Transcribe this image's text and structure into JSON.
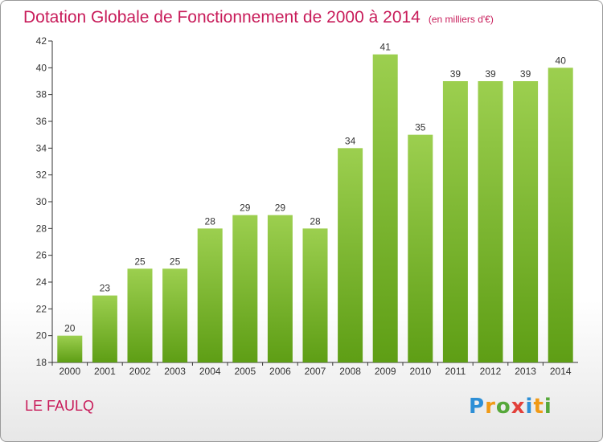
{
  "chart_data": {
    "type": "bar",
    "title": "Dotation Globale de Fonctionnement de 2000 à 2014",
    "subtitle": "(en milliers d'€)",
    "categories": [
      "2000",
      "2001",
      "2002",
      "2003",
      "2004",
      "2005",
      "2006",
      "2007",
      "2008",
      "2009",
      "2010",
      "2011",
      "2012",
      "2013",
      "2014"
    ],
    "values": [
      20,
      23,
      25,
      25,
      28,
      29,
      29,
      28,
      34,
      41,
      35,
      39,
      39,
      39,
      40
    ],
    "ylim": [
      18,
      42
    ],
    "yticks": [
      18,
      20,
      22,
      24,
      26,
      28,
      30,
      32,
      34,
      36,
      38,
      40,
      42
    ],
    "grid": false,
    "bar_color_top": "#9ccf4f",
    "bar_color_bottom": "#5e9e15"
  },
  "footer": {
    "commune": "LE FAULQ",
    "logo_letters": [
      {
        "char": "P",
        "color": "#2d8fd6"
      },
      {
        "char": "r",
        "color": "#f09a16"
      },
      {
        "char": "o",
        "color": "#56a83a"
      },
      {
        "char": "x",
        "color": "#e2403a"
      },
      {
        "char": "i",
        "color": "#2d8fd6"
      },
      {
        "char": "t",
        "color": "#f09a16"
      },
      {
        "char": "i",
        "color": "#56a83a"
      }
    ]
  }
}
